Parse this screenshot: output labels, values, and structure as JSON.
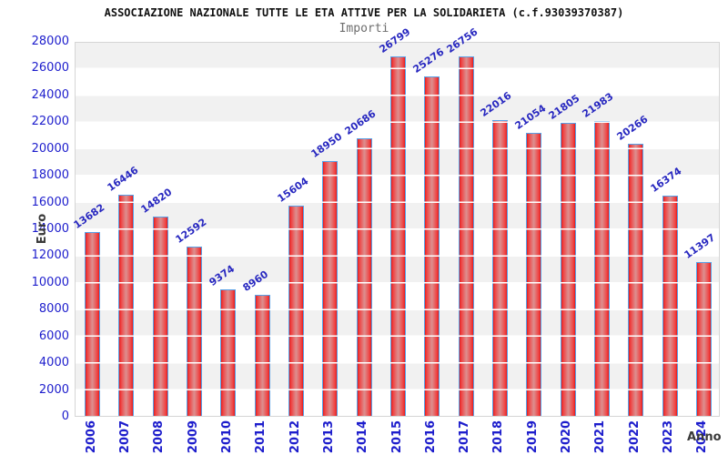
{
  "header": {
    "title": "ASSOCIAZIONE NAZIONALE TUTTE LE ETA ATTIVE PER LA SOLIDARIETA (c.f.93039370387)",
    "subtitle": "Importi"
  },
  "chart_data": {
    "type": "bar",
    "title": "ASSOCIAZIONE NAZIONALE TUTTE LE ETA ATTIVE PER LA SOLIDARIETA (c.f.93039370387)",
    "subtitle": "Importi",
    "xlabel": "Anno",
    "ylabel": "Euro",
    "categories": [
      "2006",
      "2007",
      "2008",
      "2009",
      "2010",
      "2011",
      "2012",
      "2013",
      "2014",
      "2015",
      "2016",
      "2017",
      "2018",
      "2019",
      "2020",
      "2021",
      "2022",
      "2023",
      "2024"
    ],
    "values": [
      13682,
      16446,
      14820,
      12592,
      9374,
      8960,
      15604,
      18950,
      20686,
      26799,
      25276,
      26756,
      22016,
      21054,
      21805,
      21983,
      20266,
      16374,
      11397
    ],
    "ylim": [
      0,
      28000
    ],
    "ytick_step": 2000,
    "yticks": [
      0,
      2000,
      4000,
      6000,
      8000,
      10000,
      12000,
      14000,
      16000,
      18000,
      20000,
      22000,
      24000,
      26000,
      28000
    ],
    "grid": true,
    "legend_position": "none",
    "colors": {
      "bar_edge": "#e01d1d",
      "bar_center": "#dc9090",
      "bar_border": "#58a0e6",
      "label_text": "#2828c0",
      "tick_text": "#1d1dcc",
      "axis_text": "#3a3a3a",
      "stripe": "#f1f1f1",
      "plot_border": "#d5d5d5"
    }
  }
}
